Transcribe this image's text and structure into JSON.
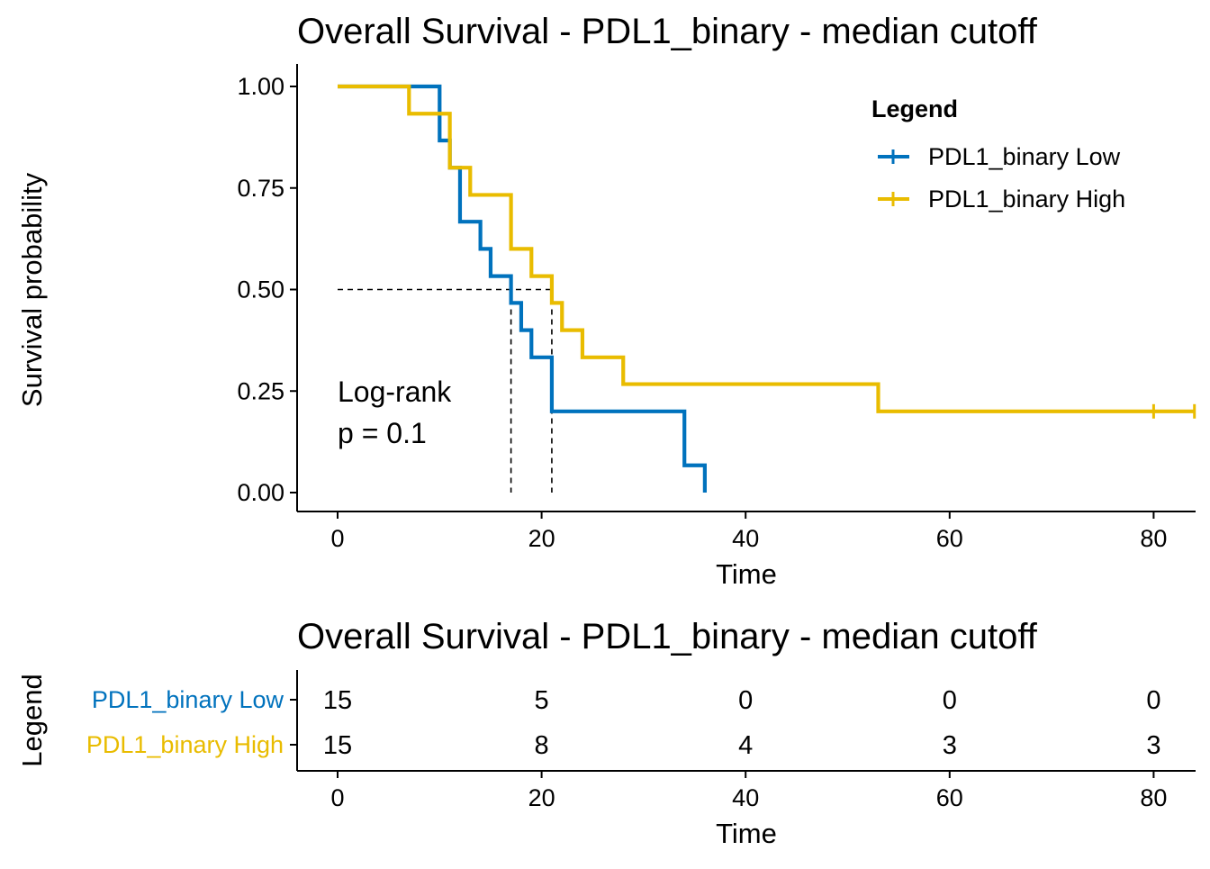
{
  "chart_data": [
    {
      "type": "line",
      "subtype": "kaplan-meier",
      "title": "Overall Survival - PDL1_binary  - median cutoff",
      "xlabel": "Time",
      "ylabel": "Survival probability",
      "xlim": [
        0,
        84
      ],
      "ylim": [
        0,
        1
      ],
      "xticks": [
        0,
        20,
        40,
        60,
        80
      ],
      "yticks": [
        0.0,
        0.25,
        0.5,
        0.75,
        1.0
      ],
      "ytick_labels": [
        "0.00",
        "0.25",
        "0.50",
        "0.75",
        "1.00"
      ],
      "grid": false,
      "legend": {
        "title": "Legend",
        "placement": "top-right",
        "entries": [
          "PDL1_binary Low",
          "PDL1_binary High"
        ]
      },
      "annotation": [
        "Log-rank",
        "p = 0.1"
      ],
      "median_line": {
        "y": 0.5,
        "x_low": 17,
        "x_high": 21
      },
      "series": [
        {
          "name": "PDL1_binary Low",
          "color": "#0072BD",
          "x": [
            0,
            10,
            11,
            12,
            14,
            15,
            17,
            18,
            19,
            21,
            34,
            36
          ],
          "y": [
            1.0,
            0.867,
            0.8,
            0.667,
            0.6,
            0.533,
            0.467,
            0.4,
            0.333,
            0.2,
            0.067,
            0.0
          ],
          "censor_x": []
        },
        {
          "name": "PDL1_binary High",
          "color": "#E9BC00",
          "x": [
            0,
            7,
            11,
            13,
            17,
            19,
            21,
            22,
            24,
            28,
            53,
            84
          ],
          "y": [
            1.0,
            0.933,
            0.8,
            0.733,
            0.6,
            0.533,
            0.467,
            0.4,
            0.333,
            0.267,
            0.2,
            0.2
          ],
          "censor_x": [
            80,
            84
          ]
        }
      ]
    },
    {
      "type": "table",
      "title": "Overall Survival - PDL1_binary  - median cutoff",
      "xlabel": "Time",
      "ylabel": "Legend",
      "xticks": [
        0,
        20,
        40,
        60,
        80
      ],
      "rows": [
        {
          "name": "PDL1_binary Low",
          "color": "#0072BD",
          "values": [
            "15",
            "5",
            "0",
            "0",
            "0"
          ]
        },
        {
          "name": "PDL1_binary High",
          "color": "#E9BC00",
          "values": [
            "15",
            "8",
            "4",
            "3",
            "3"
          ]
        }
      ]
    }
  ]
}
